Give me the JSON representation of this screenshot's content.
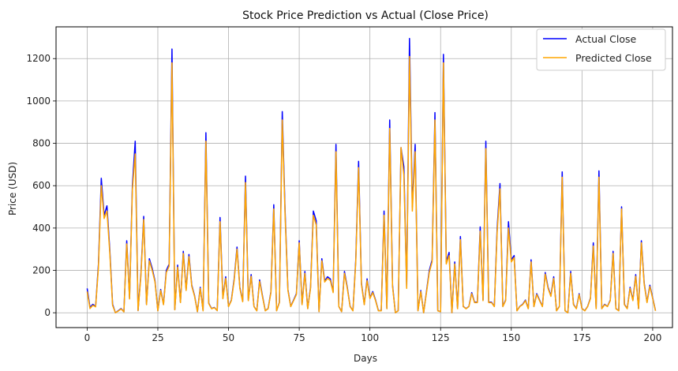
{
  "chart_data": {
    "type": "line",
    "title": "Stock Price Prediction vs Actual (Close Price)",
    "xlabel": "Days",
    "ylabel": "Price (USD)",
    "xlim": [
      -11,
      207
    ],
    "ylim": [
      -70,
      1350
    ],
    "xticks": [
      0,
      25,
      50,
      75,
      100,
      125,
      150,
      175,
      200
    ],
    "yticks": [
      0,
      200,
      400,
      600,
      800,
      1000,
      1200
    ],
    "grid": true,
    "legend_position": "top-right",
    "colors": {
      "actual": "#0000ff",
      "predicted": "#ffa500"
    },
    "series": [
      {
        "name": "Actual Close",
        "values": [
          115,
          25,
          40,
          30,
          230,
          635,
          460,
          505,
          300,
          40,
          0,
          10,
          20,
          5,
          340,
          70,
          600,
          810,
          10,
          180,
          455,
          40,
          255,
          210,
          150,
          10,
          110,
          40,
          200,
          230,
          1245,
          15,
          225,
          50,
          290,
          110,
          275,
          130,
          80,
          5,
          120,
          10,
          850,
          45,
          20,
          25,
          10,
          450,
          70,
          170,
          30,
          60,
          160,
          310,
          120,
          55,
          645,
          60,
          180,
          30,
          10,
          155,
          80,
          10,
          20,
          100,
          510,
          10,
          50,
          950,
          480,
          110,
          30,
          60,
          90,
          340,
          40,
          195,
          20,
          120,
          480,
          435,
          5,
          255,
          150,
          170,
          160,
          100,
          795,
          30,
          5,
          195,
          120,
          30,
          10,
          250,
          715,
          140,
          40,
          160,
          70,
          100,
          60,
          10,
          10,
          480,
          20,
          910,
          130,
          0,
          10,
          780,
          690,
          120,
          1295,
          500,
          795,
          10,
          105,
          0,
          100,
          200,
          250,
          945,
          10,
          5,
          1220,
          240,
          285,
          0,
          240,
          20,
          360,
          30,
          20,
          30,
          95,
          50,
          50,
          405,
          60,
          810,
          50,
          50,
          30,
          400,
          610,
          30,
          60,
          430,
          250,
          270,
          10,
          30,
          40,
          60,
          20,
          250,
          30,
          90,
          60,
          30,
          190,
          120,
          80,
          170,
          10,
          30,
          665,
          10,
          0,
          195,
          40,
          20,
          90,
          20,
          10,
          30,
          70,
          330,
          20,
          670,
          20,
          40,
          30,
          60,
          290,
          20,
          10,
          500,
          40,
          20,
          120,
          60,
          180,
          20,
          340,
          140,
          50,
          130,
          70,
          10
        ],
        "style": "solid"
      },
      {
        "name": "Predicted Close",
        "values": [
          100,
          20,
          35,
          28,
          215,
          600,
          445,
          480,
          285,
          35,
          0,
          8,
          18,
          4,
          325,
          65,
          580,
          750,
          10,
          170,
          440,
          38,
          245,
          200,
          145,
          9,
          105,
          38,
          190,
          220,
          1180,
          14,
          215,
          48,
          280,
          105,
          265,
          125,
          77,
          5,
          115,
          9,
          810,
          43,
          19,
          24,
          10,
          430,
          66,
          162,
          29,
          57,
          152,
          300,
          115,
          52,
          615,
          57,
          172,
          29,
          9,
          148,
          76,
          9,
          19,
          95,
          490,
          9,
          48,
          910,
          460,
          105,
          29,
          57,
          86,
          330,
          38,
          186,
          19,
          115,
          460,
          415,
          5,
          245,
          145,
          162,
          152,
          95,
          760,
          29,
          5,
          186,
          115,
          29,
          9,
          240,
          685,
          134,
          38,
          152,
          67,
          95,
          57,
          9,
          9,
          460,
          19,
          870,
          124,
          0,
          9,
          780,
          650,
          115,
          1210,
          480,
          760,
          9,
          100,
          0,
          95,
          190,
          240,
          910,
          9,
          5,
          1180,
          230,
          270,
          0,
          230,
          19,
          345,
          29,
          19,
          29,
          90,
          48,
          48,
          385,
          57,
          775,
          48,
          48,
          29,
          380,
          585,
          29,
          57,
          400,
          240,
          260,
          9,
          29,
          38,
          57,
          19,
          240,
          29,
          86,
          57,
          29,
          182,
          115,
          77,
          162,
          9,
          29,
          640,
          9,
          0,
          186,
          38,
          19,
          86,
          19,
          9,
          29,
          67,
          315,
          19,
          640,
          19,
          38,
          29,
          57,
          280,
          19,
          9,
          490,
          38,
          19,
          115,
          57,
          172,
          19,
          330,
          134,
          48,
          124,
          67,
          9
        ],
        "style": "solid"
      }
    ]
  }
}
